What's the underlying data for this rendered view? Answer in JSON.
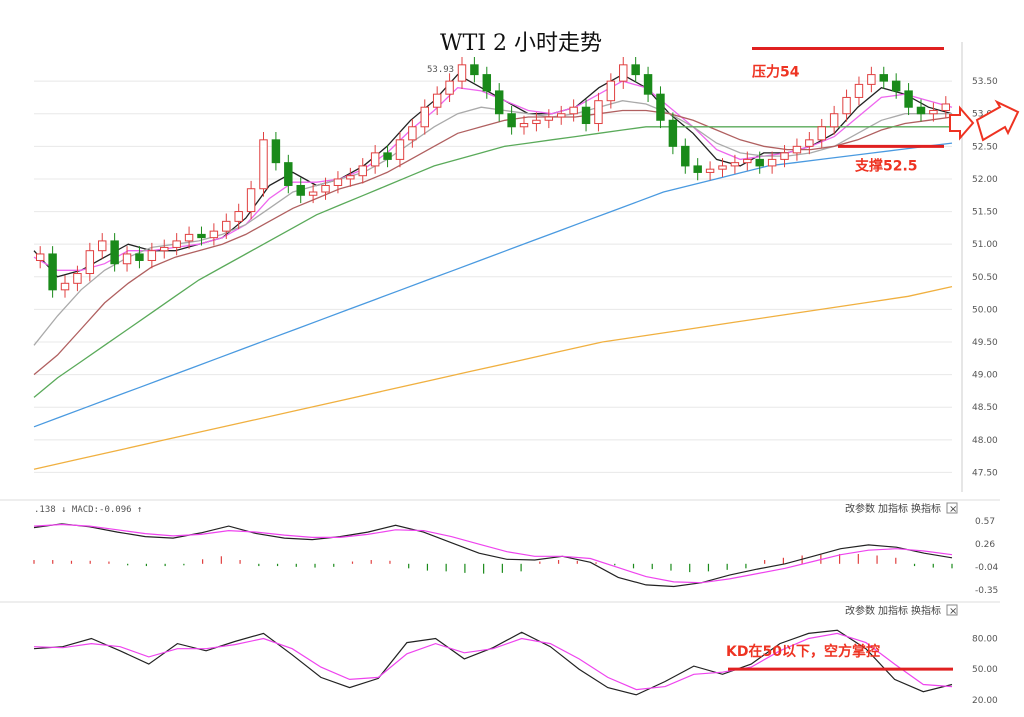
{
  "chart_data": [
    {
      "type": "candlestick",
      "title": "WTI 2 小时走势",
      "ylim": [
        47.2,
        54.1
      ],
      "y_ticks": [
        "53.50",
        "53.00",
        "52.50",
        "52.00",
        "51.50",
        "51.00",
        "50.50",
        "50.00",
        "49.50",
        "49.00",
        "48.50",
        "48.00",
        "47.50"
      ],
      "last_high_label": "53.93",
      "series": [
        {
          "kind": "candles",
          "values": [
            50.85,
            50.3,
            50.4,
            50.55,
            50.9,
            51.05,
            50.7,
            50.85,
            50.75,
            50.9,
            50.95,
            51.05,
            51.15,
            51.1,
            51.2,
            51.35,
            51.5,
            51.85,
            52.6,
            52.25,
            51.9,
            51.75,
            51.8,
            51.9,
            52.0,
            52.05,
            52.2,
            52.4,
            52.3,
            52.6,
            52.8,
            53.1,
            53.3,
            53.5,
            53.75,
            53.6,
            53.35,
            53.0,
            52.8,
            52.85,
            52.9,
            52.95,
            53.0,
            53.1,
            52.85,
            53.2,
            53.5,
            53.75,
            53.6,
            53.3,
            52.9,
            52.5,
            52.2,
            52.1,
            52.15,
            52.2,
            52.25,
            52.3,
            52.2,
            52.3,
            52.4,
            52.5,
            52.6,
            52.8,
            53.0,
            53.25,
            53.45,
            53.6,
            53.5,
            53.35,
            53.1,
            53.0,
            53.05,
            53.15
          ]
        },
        {
          "kind": "ma",
          "name": "",
          "color": "#222222",
          "values": [
            50.9,
            50.5,
            50.6,
            50.8,
            51.0,
            50.9,
            50.9,
            51.0,
            51.1,
            51.4,
            51.9,
            52.1,
            51.9,
            52.0,
            52.2,
            52.5,
            52.9,
            53.2,
            53.6,
            53.4,
            53.2,
            53.0,
            53.0,
            53.1,
            53.4,
            53.6,
            53.4,
            53.0,
            52.7,
            52.3,
            52.2,
            52.4,
            52.4,
            52.5,
            52.7,
            53.1,
            53.4,
            53.3,
            53.1,
            53.0
          ]
        },
        {
          "kind": "ma",
          "name": "",
          "color": "#ee66ee",
          "values": [
            50.8,
            50.6,
            50.6,
            50.7,
            50.9,
            50.9,
            50.95,
            51.0,
            51.1,
            51.3,
            51.7,
            51.95,
            51.95,
            52.0,
            52.15,
            52.4,
            52.75,
            53.05,
            53.4,
            53.35,
            53.2,
            53.05,
            53.0,
            53.1,
            53.3,
            53.5,
            53.4,
            53.1,
            52.8,
            52.45,
            52.3,
            52.35,
            52.4,
            52.5,
            52.65,
            52.95,
            53.25,
            53.3,
            53.2,
            53.1
          ]
        },
        {
          "kind": "ma",
          "name": "",
          "color": "#aaaaaa",
          "values": [
            49.45,
            49.9,
            50.3,
            50.6,
            50.8,
            50.95,
            51.0,
            51.05,
            51.15,
            51.3,
            51.55,
            51.8,
            51.9,
            52.0,
            52.1,
            52.3,
            52.55,
            52.8,
            53.0,
            53.1,
            53.05,
            53.0,
            52.95,
            53.0,
            53.1,
            53.2,
            53.15,
            53.0,
            52.8,
            52.55,
            52.4,
            52.35,
            52.35,
            52.4,
            52.5,
            52.7,
            52.9,
            53.0,
            53.0,
            53.0
          ]
        },
        {
          "kind": "ma",
          "name": "",
          "color": "#b06060",
          "values": [
            49.0,
            49.3,
            49.7,
            50.1,
            50.4,
            50.65,
            50.8,
            50.9,
            51.0,
            51.15,
            51.35,
            51.55,
            51.7,
            51.85,
            51.95,
            52.1,
            52.3,
            52.5,
            52.7,
            52.8,
            52.9,
            52.95,
            52.95,
            52.95,
            53.0,
            53.05,
            53.05,
            53.0,
            52.9,
            52.75,
            52.6,
            52.5,
            52.45,
            52.45,
            52.5,
            52.6,
            52.75,
            52.85,
            52.9,
            52.95
          ]
        },
        {
          "kind": "ma",
          "name": "",
          "color": "#5aaa5a",
          "values": [
            48.65,
            48.95,
            49.2,
            49.45,
            49.7,
            49.95,
            50.2,
            50.45,
            50.65,
            50.85,
            51.05,
            51.25,
            51.45,
            51.6,
            51.75,
            51.9,
            52.05,
            52.2,
            52.3,
            52.4,
            52.5,
            52.55,
            52.6,
            52.65,
            52.7,
            52.75,
            52.8,
            52.8,
            52.8,
            52.8,
            52.8,
            52.8,
            52.8,
            52.8,
            52.8,
            52.8,
            52.8,
            52.8,
            52.8,
            52.8
          ]
        },
        {
          "kind": "ma",
          "name": "",
          "color": "#4a9ae0",
          "values": [
            48.2,
            48.35,
            48.5,
            48.65,
            48.8,
            48.95,
            49.1,
            49.25,
            49.4,
            49.55,
            49.7,
            49.85,
            50.0,
            50.15,
            50.3,
            50.45,
            50.6,
            50.75,
            50.9,
            51.05,
            51.2,
            51.35,
            51.5,
            51.65,
            51.8,
            51.9,
            52.0,
            52.1,
            52.2,
            52.25,
            52.3,
            52.35,
            52.4,
            52.45,
            52.5,
            52.55
          ]
        },
        {
          "kind": "ma",
          "name": "",
          "color": "#f0b040",
          "values": [
            47.55,
            47.7,
            47.85,
            48.0,
            48.15,
            48.3,
            48.45,
            48.6,
            48.75,
            48.9,
            49.05,
            49.2,
            49.35,
            49.5,
            49.6,
            49.7,
            49.8,
            49.9,
            50.0,
            50.1,
            50.2,
            50.35
          ]
        }
      ],
      "annotations": [
        {
          "text": "压力54",
          "value": 54.0
        },
        {
          "text": "支撑52.5",
          "value": 52.5
        }
      ]
    },
    {
      "type": "macd",
      "header": ".138 ↓ MACD:-0.096 ↑",
      "ylim": [
        -0.4,
        0.62
      ],
      "y_ticks": [
        "0.57",
        "0.26",
        "-0.04",
        "-0.35"
      ],
      "dif": [
        0.48,
        0.53,
        0.49,
        0.42,
        0.36,
        0.34,
        0.41,
        0.5,
        0.4,
        0.34,
        0.32,
        0.36,
        0.42,
        0.51,
        0.42,
        0.28,
        0.14,
        0.06,
        0.05,
        0.1,
        0.02,
        -0.18,
        -0.28,
        -0.3,
        -0.25,
        -0.15,
        -0.07,
        0.0,
        0.1,
        0.2,
        0.25,
        0.22,
        0.14,
        0.08
      ],
      "dea": [
        0.5,
        0.52,
        0.5,
        0.45,
        0.4,
        0.37,
        0.39,
        0.44,
        0.42,
        0.38,
        0.35,
        0.35,
        0.39,
        0.45,
        0.44,
        0.36,
        0.26,
        0.16,
        0.1,
        0.1,
        0.07,
        -0.05,
        -0.17,
        -0.24,
        -0.25,
        -0.2,
        -0.13,
        -0.06,
        0.03,
        0.12,
        0.18,
        0.2,
        0.17,
        0.12
      ],
      "hist": [
        0.05,
        0.05,
        0.04,
        0.04,
        0.03,
        -0.02,
        -0.03,
        -0.03,
        -0.02,
        0.06,
        0.1,
        0.05,
        -0.03,
        -0.03,
        -0.04,
        -0.05,
        -0.04,
        0.03,
        0.05,
        0.04,
        -0.06,
        -0.09,
        -0.1,
        -0.12,
        -0.13,
        -0.12,
        -0.1,
        0.03,
        0.05,
        0.04,
        0.02,
        -0.02,
        -0.06,
        -0.07,
        -0.09,
        -0.11,
        -0.1,
        -0.08,
        -0.06,
        0.05,
        0.08,
        0.11,
        0.12,
        0.13,
        0.13,
        0.11,
        0.08,
        -0.03,
        -0.05,
        -0.06
      ]
    },
    {
      "type": "kd",
      "ylim": [
        15,
        100
      ],
      "y_ticks": [
        "80.00",
        "50.00",
        "20.00"
      ],
      "k": [
        70,
        72,
        80,
        68,
        55,
        75,
        68,
        77,
        85,
        64,
        42,
        32,
        41,
        76,
        80,
        60,
        71,
        86,
        72,
        50,
        32,
        25,
        38,
        53,
        45,
        55,
        75,
        85,
        88,
        70,
        40,
        28,
        35
      ],
      "d": [
        72,
        71,
        75,
        72,
        62,
        70,
        70,
        74,
        80,
        70,
        52,
        40,
        42,
        65,
        75,
        66,
        70,
        80,
        75,
        60,
        42,
        30,
        33,
        45,
        47,
        52,
        68,
        80,
        85,
        76,
        55,
        35,
        33
      ],
      "annotations": [
        {
          "text": "KD在50以下，空方掌控",
          "value": 50
        }
      ]
    }
  ],
  "toolbar": {
    "panel1": [
      "改参数",
      "加指标",
      "换指标"
    ],
    "panel2": [
      "改参数",
      "加指标",
      "换指标"
    ],
    "close_label": "×"
  }
}
